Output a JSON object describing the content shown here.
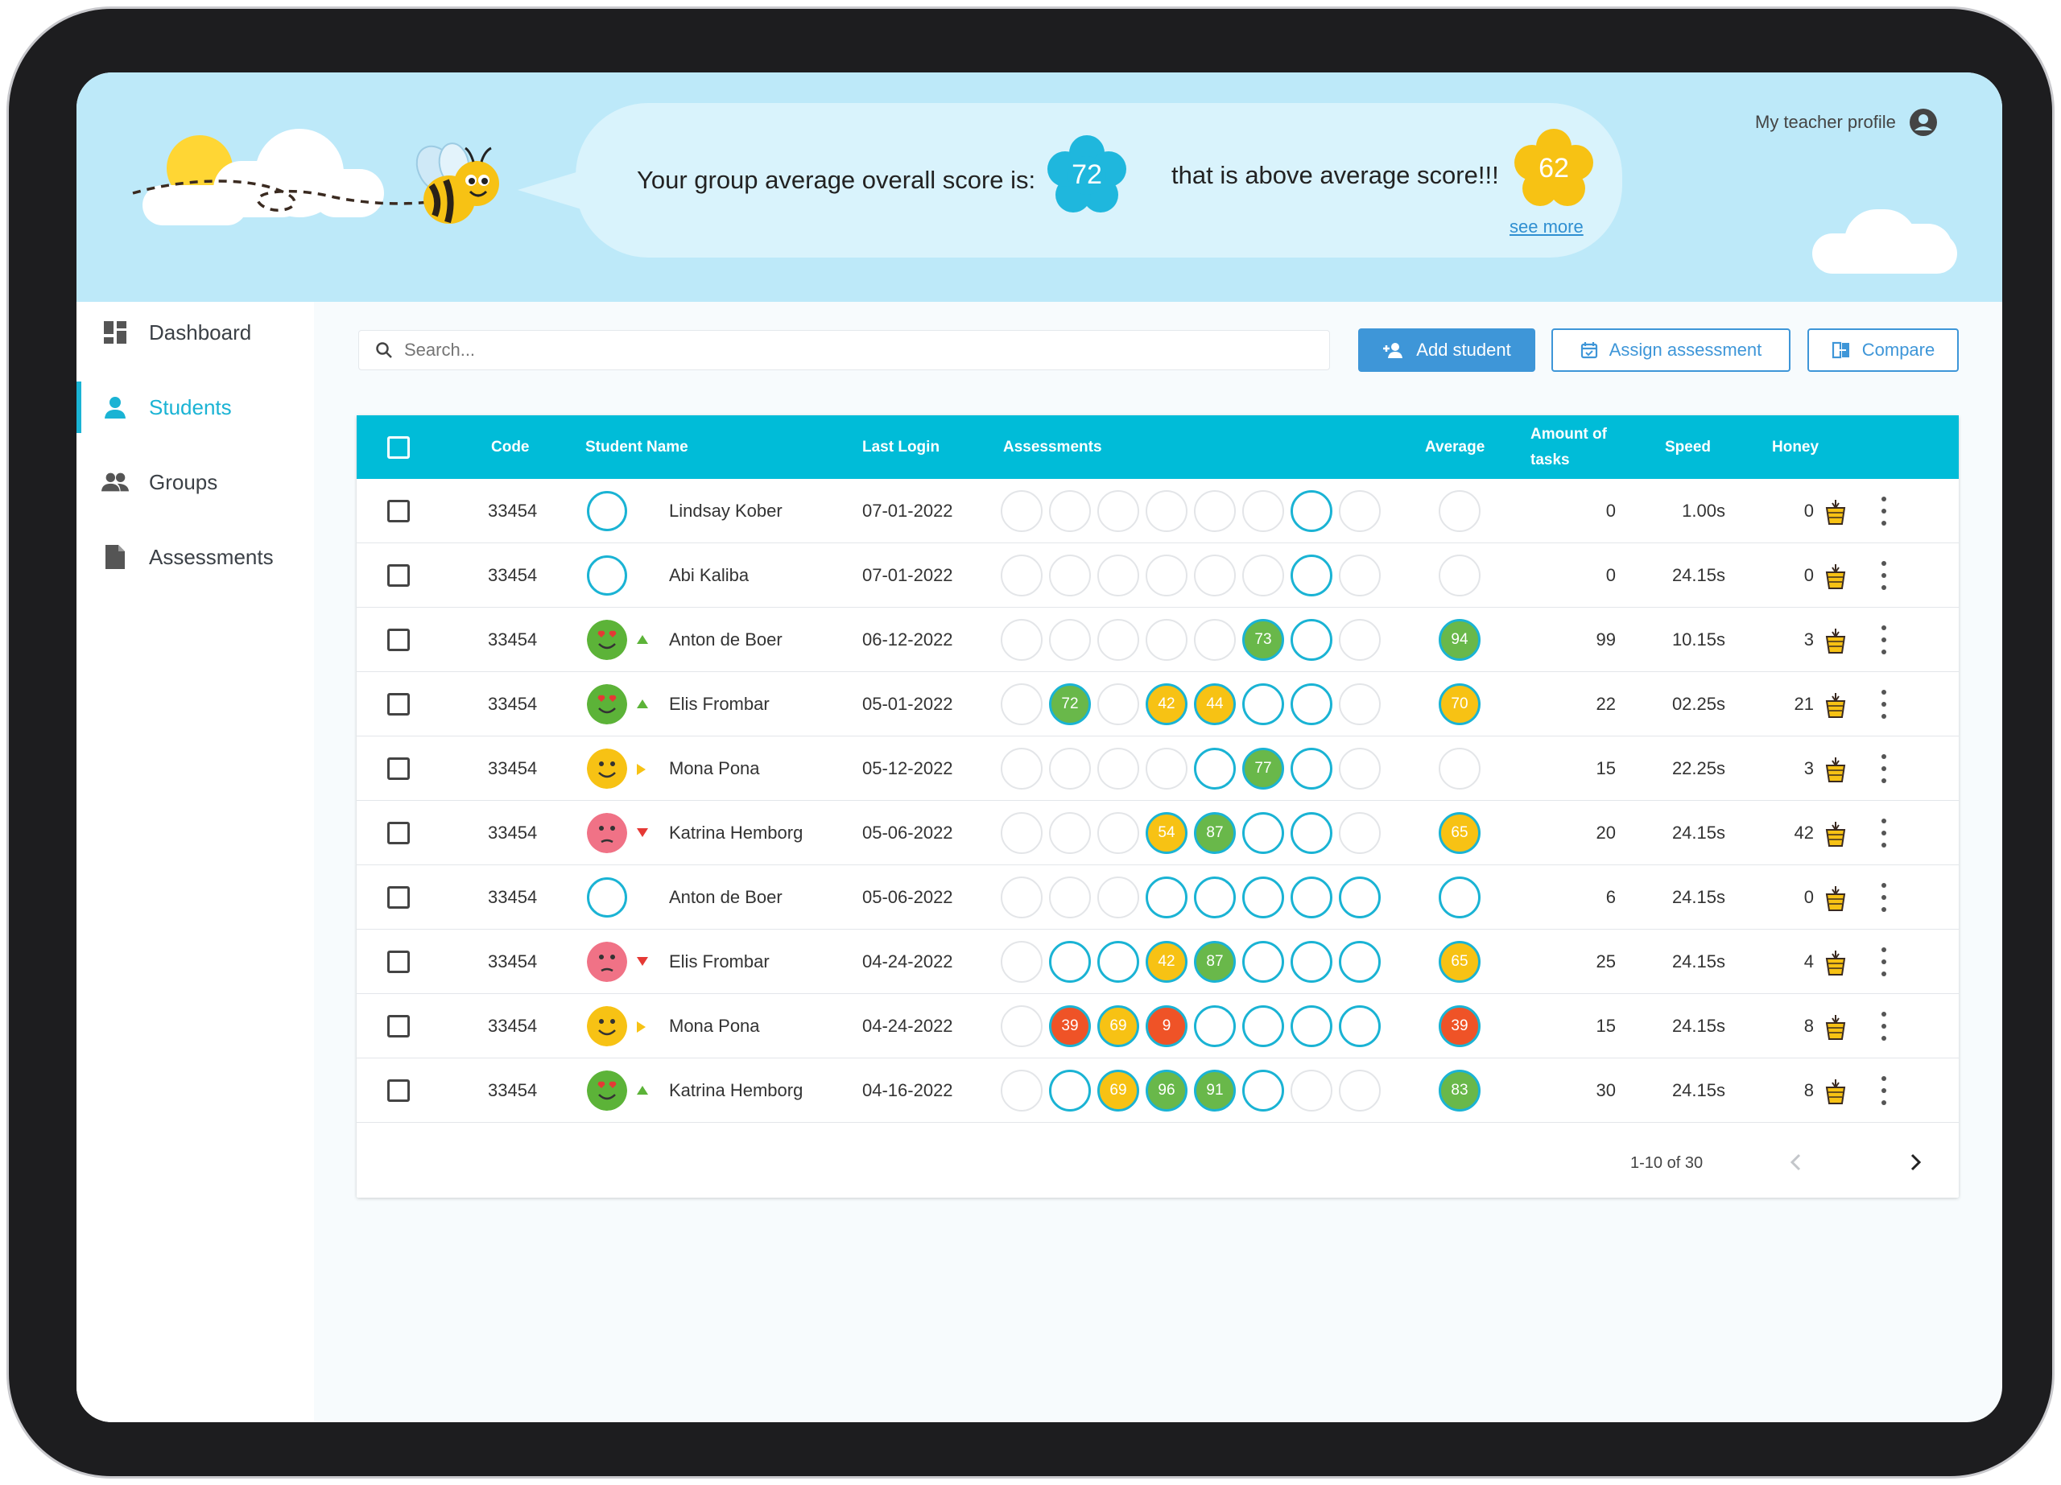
{
  "header": {
    "message_prefix": "Your group average overall score is:",
    "group_score": "72",
    "message_suffix": "that is above average score!!!",
    "benchmark_score": "62",
    "see_more": "see more",
    "profile_label": "My teacher profile"
  },
  "sidebar": {
    "items": [
      {
        "label": "Dashboard",
        "icon": "dashboard-icon",
        "active": false
      },
      {
        "label": "Students",
        "icon": "person-icon",
        "active": true
      },
      {
        "label": "Groups",
        "icon": "group-icon",
        "active": false
      },
      {
        "label": "Assessments",
        "icon": "document-icon",
        "active": false
      }
    ]
  },
  "toolbar": {
    "search_placeholder": "Search...",
    "add_student": "Add student",
    "assign_assessment": "Assign assessment",
    "compare": "Compare"
  },
  "table": {
    "columns": {
      "code": "Code",
      "name": "Student Name",
      "last_login": "Last Login",
      "assessments": "Assessments",
      "average": "Average",
      "tasks_line1": "Amount of",
      "tasks_line2": "tasks",
      "speed": "Speed",
      "honey": "Honey"
    },
    "rows": [
      {
        "code": "33454",
        "mood": "none",
        "trend": "none",
        "name": "Lindsay Kober",
        "last_login": "07-01-2022",
        "assessments": [
          [
            "empty",
            ""
          ],
          [
            "empty",
            ""
          ],
          [
            "empty",
            ""
          ],
          [
            "empty",
            ""
          ],
          [
            "empty",
            ""
          ],
          [
            "empty",
            ""
          ],
          [
            "blue",
            ""
          ],
          [
            "empty",
            ""
          ]
        ],
        "average": [
          "empty",
          ""
        ],
        "tasks": "0",
        "speed": "1.00s",
        "honey": "0"
      },
      {
        "code": "33454",
        "mood": "none",
        "trend": "none",
        "name": "Abi Kaliba",
        "last_login": "07-01-2022",
        "assessments": [
          [
            "empty",
            ""
          ],
          [
            "empty",
            ""
          ],
          [
            "empty",
            ""
          ],
          [
            "empty",
            ""
          ],
          [
            "empty",
            ""
          ],
          [
            "empty",
            ""
          ],
          [
            "blue",
            ""
          ],
          [
            "empty",
            ""
          ]
        ],
        "average": [
          "empty",
          ""
        ],
        "tasks": "0",
        "speed": "24.15s",
        "honey": "0"
      },
      {
        "code": "33454",
        "mood": "love",
        "trend": "up",
        "name": "Anton de Boer",
        "last_login": "06-12-2022",
        "assessments": [
          [
            "empty",
            ""
          ],
          [
            "empty",
            ""
          ],
          [
            "empty",
            ""
          ],
          [
            "empty",
            ""
          ],
          [
            "empty",
            ""
          ],
          [
            "green",
            "73"
          ],
          [
            "blue",
            ""
          ],
          [
            "empty",
            ""
          ]
        ],
        "average": [
          "green",
          "94"
        ],
        "tasks": "99",
        "speed": "10.15s",
        "honey": "3"
      },
      {
        "code": "33454",
        "mood": "love",
        "trend": "up",
        "name": "Elis Frombar",
        "last_login": "05-01-2022",
        "assessments": [
          [
            "empty",
            ""
          ],
          [
            "green",
            "72"
          ],
          [
            "empty",
            ""
          ],
          [
            "yellow",
            "42"
          ],
          [
            "yellow",
            "44"
          ],
          [
            "blue",
            ""
          ],
          [
            "blue",
            ""
          ],
          [
            "empty",
            ""
          ]
        ],
        "average": [
          "yellow",
          "70"
        ],
        "tasks": "22",
        "speed": "02.25s",
        "honey": "21"
      },
      {
        "code": "33454",
        "mood": "happy",
        "trend": "flat",
        "name": "Mona Pona",
        "last_login": "05-12-2022",
        "assessments": [
          [
            "empty",
            ""
          ],
          [
            "empty",
            ""
          ],
          [
            "empty",
            ""
          ],
          [
            "empty",
            ""
          ],
          [
            "blue",
            ""
          ],
          [
            "green",
            "77"
          ],
          [
            "blue",
            ""
          ],
          [
            "empty",
            ""
          ]
        ],
        "average": [
          "empty",
          ""
        ],
        "tasks": "15",
        "speed": "22.25s",
        "honey": "3"
      },
      {
        "code": "33454",
        "mood": "sad",
        "trend": "down",
        "name": "Katrina Hemborg",
        "last_login": "05-06-2022",
        "assessments": [
          [
            "empty",
            ""
          ],
          [
            "empty",
            ""
          ],
          [
            "empty",
            ""
          ],
          [
            "yellow",
            "54"
          ],
          [
            "green",
            "87"
          ],
          [
            "blue",
            ""
          ],
          [
            "blue",
            ""
          ],
          [
            "empty",
            ""
          ]
        ],
        "average": [
          "yellow",
          "65"
        ],
        "tasks": "20",
        "speed": "24.15s",
        "honey": "42"
      },
      {
        "code": "33454",
        "mood": "none",
        "trend": "none",
        "name": "Anton de Boer",
        "last_login": "05-06-2022",
        "assessments": [
          [
            "empty",
            ""
          ],
          [
            "empty",
            ""
          ],
          [
            "empty",
            ""
          ],
          [
            "blue",
            ""
          ],
          [
            "blue",
            ""
          ],
          [
            "blue",
            ""
          ],
          [
            "blue",
            ""
          ],
          [
            "blue",
            ""
          ]
        ],
        "average": [
          "blue",
          ""
        ],
        "tasks": "6",
        "speed": "24.15s",
        "honey": "0"
      },
      {
        "code": "33454",
        "mood": "sad",
        "trend": "down",
        "name": "Elis Frombar",
        "last_login": "04-24-2022",
        "assessments": [
          [
            "empty",
            ""
          ],
          [
            "blue",
            ""
          ],
          [
            "blue",
            ""
          ],
          [
            "yellow",
            "42"
          ],
          [
            "green",
            "87"
          ],
          [
            "blue",
            ""
          ],
          [
            "blue",
            ""
          ],
          [
            "blue",
            ""
          ]
        ],
        "average": [
          "yellow",
          "65"
        ],
        "tasks": "25",
        "speed": "24.15s",
        "honey": "4"
      },
      {
        "code": "33454",
        "mood": "happy",
        "trend": "flat",
        "name": "Mona Pona",
        "last_login": "04-24-2022",
        "assessments": [
          [
            "empty",
            ""
          ],
          [
            "red",
            "39"
          ],
          [
            "yellow",
            "69"
          ],
          [
            "red",
            "9"
          ],
          [
            "blue",
            ""
          ],
          [
            "blue",
            ""
          ],
          [
            "blue",
            ""
          ],
          [
            "blue",
            ""
          ]
        ],
        "average": [
          "red",
          "39"
        ],
        "tasks": "15",
        "speed": "24.15s",
        "honey": "8"
      },
      {
        "code": "33454",
        "mood": "love",
        "trend": "up",
        "name": "Katrina Hemborg",
        "last_login": "04-16-2022",
        "assessments": [
          [
            "empty",
            ""
          ],
          [
            "blue",
            ""
          ],
          [
            "yellow",
            "69"
          ],
          [
            "green",
            "96"
          ],
          [
            "green",
            "91"
          ],
          [
            "blue",
            ""
          ],
          [
            "empty",
            ""
          ],
          [
            "empty",
            ""
          ]
        ],
        "average": [
          "green",
          "83"
        ],
        "tasks": "30",
        "speed": "24.15s",
        "honey": "8"
      }
    ]
  },
  "pagination": {
    "range": "1-10 of 30"
  },
  "colors": {
    "header_bg": "#bde9f9",
    "accent": "#00bcd8",
    "primary_button": "#3e96d8",
    "green": "#69b84a",
    "yellow": "#f7c214",
    "red": "#ef5327"
  }
}
